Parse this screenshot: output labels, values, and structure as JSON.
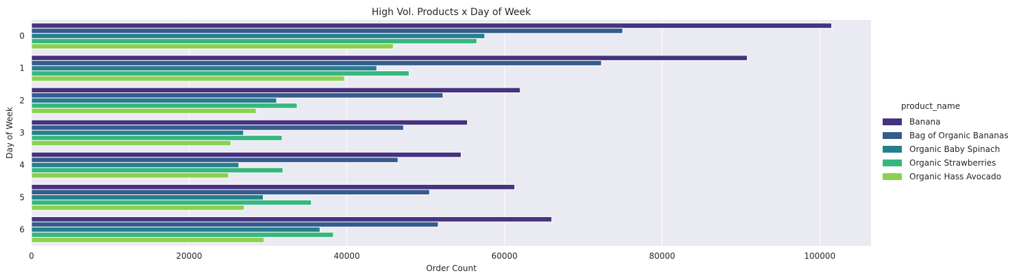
{
  "chart_data": {
    "type": "bar",
    "orientation": "horizontal",
    "title": "High Vol. Products x Day of Week",
    "xlabel": "Order Count",
    "ylabel": "Day of Week",
    "xlim": [
      0,
      106500
    ],
    "xticks": [
      0,
      20000,
      40000,
      60000,
      80000,
      100000
    ],
    "categories": [
      "0",
      "1",
      "2",
      "3",
      "4",
      "5",
      "6"
    ],
    "legend_title": "product_name",
    "legend_position": "right",
    "grid": true,
    "background": "#eaeaf2",
    "series": [
      {
        "name": "Banana",
        "color": "#46327e",
        "values": [
          101500,
          90800,
          62000,
          55300,
          54500,
          61300,
          66000
        ]
      },
      {
        "name": "Bag of Organic Bananas",
        "color": "#365c8d",
        "values": [
          75000,
          72300,
          52200,
          47200,
          46500,
          50500,
          51600
        ]
      },
      {
        "name": "Organic Baby Spinach",
        "color": "#277f8e",
        "values": [
          57500,
          43800,
          31100,
          26900,
          26300,
          29400,
          36600
        ]
      },
      {
        "name": "Organic Strawberries",
        "color": "#37b77d",
        "values": [
          56500,
          47900,
          33700,
          31800,
          31900,
          35500,
          38300
        ]
      },
      {
        "name": "Organic Hass Avocado",
        "color": "#8cd050",
        "values": [
          45900,
          39700,
          28500,
          25300,
          25000,
          27000,
          29500
        ]
      }
    ]
  }
}
